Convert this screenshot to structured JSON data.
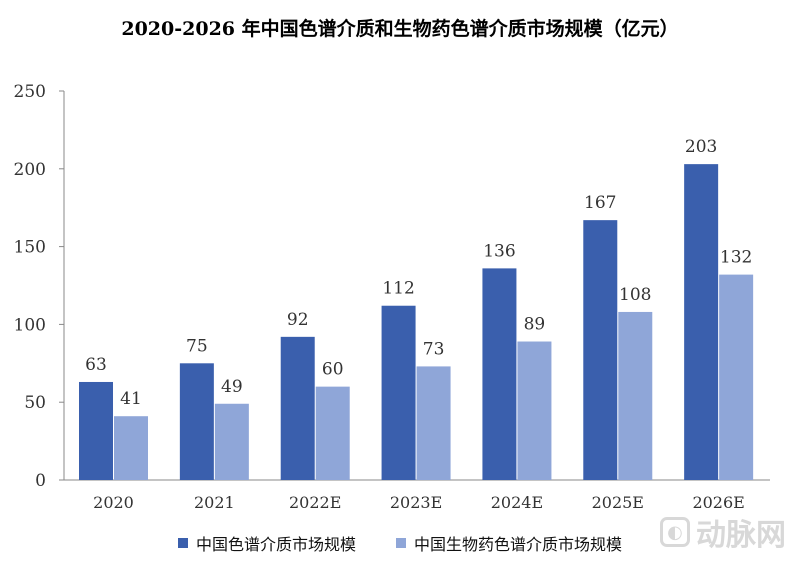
{
  "chart_data": {
    "type": "bar",
    "title": "2020-2026 年中国色谱介质和生物药色谱介质市场规模（亿元）",
    "categories": [
      "2020",
      "2021",
      "2022E",
      "2023E",
      "2024E",
      "2025E",
      "2026E"
    ],
    "series": [
      {
        "name": "中国色谱介质市场规模",
        "color": "#3a5fad",
        "values": [
          63,
          75,
          92,
          112,
          136,
          167,
          203
        ]
      },
      {
        "name": "中国生物药色谱介质市场规模",
        "color": "#8fa6d8",
        "values": [
          41,
          49,
          60,
          73,
          89,
          108,
          132
        ]
      }
    ],
    "ylim": [
      0,
      250
    ],
    "yticks": [
      0,
      50,
      100,
      150,
      200,
      250
    ],
    "grid": false,
    "legend": "bottom"
  },
  "watermark": {
    "text": "动脉网",
    "icon": "logo-icon"
  }
}
